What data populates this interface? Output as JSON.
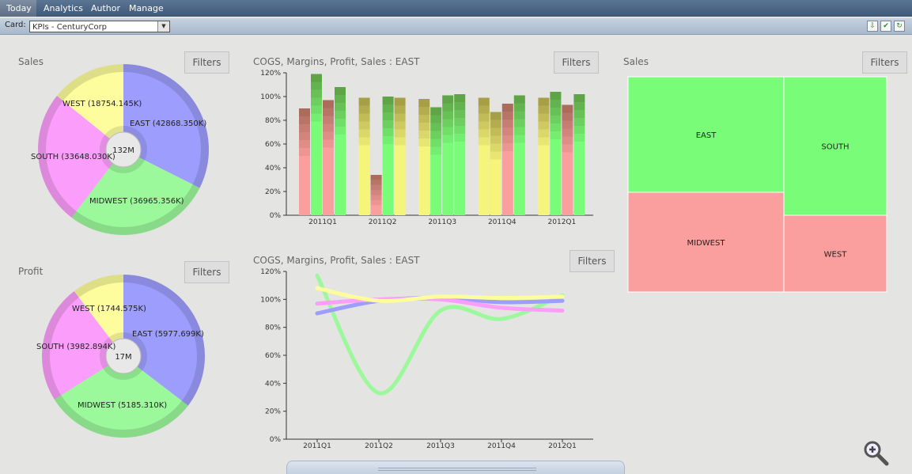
{
  "nav": {
    "tabs": [
      "Today",
      "Analytics",
      "Author",
      "Manage"
    ],
    "active": "Today"
  },
  "card": {
    "label": "Card:",
    "value": "KPIs - CenturyCorp"
  },
  "toolbar_icons": [
    "export-icon",
    "checkmark-icon",
    "refresh-icon"
  ],
  "filters_label": "Filters",
  "panels": {
    "sales_pie": {
      "title": "Sales",
      "center": "132M"
    },
    "profit_pie": {
      "title": "Profit",
      "center": "17M"
    },
    "bar_chart": {
      "title": "COGS, Margins, Profit, Sales : EAST"
    },
    "line_chart": {
      "title": "COGS, Margins, Profit, Sales : EAST"
    },
    "treemap": {
      "title": "Sales"
    }
  },
  "colors": {
    "east": "#9d9dfd",
    "midwest": "#9bf99b",
    "south": "#fb9dfb",
    "west": "#fdfd9d",
    "good": "#79fd79",
    "bad": "#fb9e9e"
  },
  "chart_data": [
    {
      "type": "pie",
      "title": "Sales",
      "center_label": "132M",
      "slices": [
        {
          "label": "EAST (42868.350K)",
          "value": 42868.35
        },
        {
          "label": "MIDWEST (36965.356K)",
          "value": 36965.356
        },
        {
          "label": "SOUTH (33648.030K)",
          "value": 33648.03
        },
        {
          "label": "WEST (18754.145K)",
          "value": 18754.145
        }
      ]
    },
    {
      "type": "pie",
      "title": "Profit",
      "center_label": "17M",
      "slices": [
        {
          "label": "EAST (5977.699K)",
          "value": 5977.699
        },
        {
          "label": "MIDWEST (5185.310K)",
          "value": 5185.31
        },
        {
          "label": "SOUTH (3982.894K)",
          "value": 3982.894
        },
        {
          "label": "WEST (1744.575K)",
          "value": 1744.575
        }
      ]
    },
    {
      "type": "bar",
      "title": "COGS, Margins, Profit, Sales : EAST",
      "categories": [
        "2011Q1",
        "2011Q2",
        "2011Q3",
        "2011Q4",
        "2012Q1"
      ],
      "yticks": [
        "0%",
        "20%",
        "40%",
        "60%",
        "80%",
        "100%",
        "120%"
      ],
      "ylim": [
        0,
        120
      ],
      "series": [
        {
          "values": [
            90,
            99,
            98,
            99,
            99
          ],
          "colors": [
            "#fb9e9e",
            "#f5f57b",
            "#f5f57b",
            "#f5f57b",
            "#f5f57b"
          ]
        },
        {
          "values": [
            119,
            34,
            91,
            87,
            104
          ],
          "colors": [
            "#79fd79",
            "#fb9e9e",
            "#79fd79",
            "#f5f57b",
            "#79fd79"
          ]
        },
        {
          "values": [
            97,
            100,
            101,
            94,
            93
          ],
          "colors": [
            "#fb9e9e",
            "#79fd79",
            "#79fd79",
            "#fb9e9e",
            "#fb9e9e"
          ]
        },
        {
          "values": [
            108,
            99,
            102,
            101,
            102
          ],
          "colors": [
            "#79fd79",
            "#f5f57b",
            "#79fd79",
            "#79fd79",
            "#79fd79"
          ]
        }
      ]
    },
    {
      "type": "line",
      "title": "COGS, Margins, Profit, Sales : EAST",
      "categories": [
        "2011Q1",
        "2011Q2",
        "2011Q3",
        "2011Q4",
        "2012Q1"
      ],
      "yticks": [
        "0%",
        "20%",
        "40%",
        "60%",
        "80%",
        "100%",
        "120%"
      ],
      "ylim": [
        0,
        120
      ],
      "series": [
        {
          "color": "#9bf99b",
          "values": [
            117,
            33,
            92,
            86,
            103
          ]
        },
        {
          "color": "#9d9dfd",
          "values": [
            90,
            99,
            101,
            98,
            99
          ]
        },
        {
          "color": "#fb9dfb",
          "values": [
            97,
            100,
            100,
            94,
            92
          ]
        },
        {
          "color": "#fdfd9d",
          "values": [
            108,
            99,
            102,
            101,
            102
          ]
        }
      ]
    },
    {
      "type": "treemap",
      "title": "Sales",
      "cells": [
        {
          "label": "EAST",
          "value": 42868.35,
          "color": "#79fd79"
        },
        {
          "label": "MIDWEST",
          "value": 36965.356,
          "color": "#fb9e9e"
        },
        {
          "label": "SOUTH",
          "value": 33648.03,
          "color": "#79fd79"
        },
        {
          "label": "WEST",
          "value": 18754.145,
          "color": "#fb9e9e"
        }
      ]
    }
  ]
}
